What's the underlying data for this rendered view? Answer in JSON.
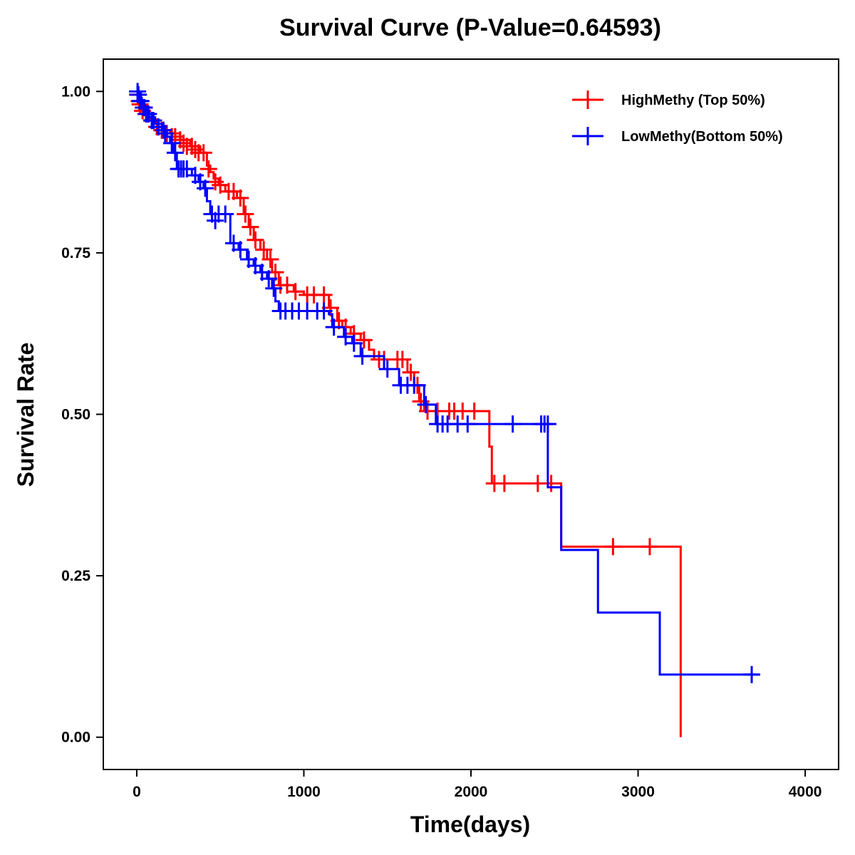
{
  "chart_data": {
    "type": "line",
    "title": "Survival Curve (P-Value=0.64593)",
    "xlabel": "Time(days)",
    "ylabel": "Survival Rate",
    "xlim": [
      -200,
      4200
    ],
    "ylim": [
      -0.05,
      1.05
    ],
    "xticks": [
      0,
      1000,
      2000,
      3000,
      4000
    ],
    "xtick_labels": [
      "0",
      "1000",
      "2000",
      "3000",
      "4000"
    ],
    "yticks": [
      0.0,
      0.25,
      0.5,
      0.75,
      1.0
    ],
    "ytick_labels": [
      "0.00",
      "0.25",
      "0.50",
      "0.75",
      "1.00"
    ],
    "grid": false,
    "legend_position": "top-right",
    "series": [
      {
        "name": "HighMethy (Top 50%)",
        "color": "#ff0000",
        "steps": [
          [
            0,
            1.0
          ],
          [
            10,
            0.985
          ],
          [
            25,
            0.975
          ],
          [
            45,
            0.965
          ],
          [
            70,
            0.958
          ],
          [
            100,
            0.95
          ],
          [
            130,
            0.945
          ],
          [
            160,
            0.94
          ],
          [
            200,
            0.935
          ],
          [
            260,
            0.925
          ],
          [
            320,
            0.915
          ],
          [
            380,
            0.905
          ],
          [
            420,
            0.885
          ],
          [
            440,
            0.875
          ],
          [
            460,
            0.865
          ],
          [
            490,
            0.855
          ],
          [
            530,
            0.845
          ],
          [
            600,
            0.835
          ],
          [
            640,
            0.81
          ],
          [
            670,
            0.79
          ],
          [
            700,
            0.77
          ],
          [
            740,
            0.755
          ],
          [
            780,
            0.74
          ],
          [
            810,
            0.72
          ],
          [
            850,
            0.7
          ],
          [
            940,
            0.69
          ],
          [
            1000,
            0.685
          ],
          [
            1150,
            0.665
          ],
          [
            1200,
            0.645
          ],
          [
            1230,
            0.635
          ],
          [
            1280,
            0.625
          ],
          [
            1340,
            0.615
          ],
          [
            1390,
            0.6
          ],
          [
            1420,
            0.585
          ],
          [
            1620,
            0.565
          ],
          [
            1660,
            0.545
          ],
          [
            1690,
            0.52
          ],
          [
            1720,
            0.505
          ],
          [
            2110,
            0.45
          ],
          [
            2125,
            0.393
          ],
          [
            2540,
            0.295
          ],
          [
            3255,
            0.0
          ]
        ],
        "end": 3255,
        "censors": [
          [
            5,
            0.995
          ],
          [
            15,
            0.985
          ],
          [
            20,
            0.98
          ],
          [
            35,
            0.97
          ],
          [
            55,
            0.965
          ],
          [
            90,
            0.955
          ],
          [
            120,
            0.945
          ],
          [
            150,
            0.94
          ],
          [
            180,
            0.935
          ],
          [
            210,
            0.93
          ],
          [
            230,
            0.93
          ],
          [
            260,
            0.925
          ],
          [
            280,
            0.92
          ],
          [
            300,
            0.915
          ],
          [
            330,
            0.915
          ],
          [
            350,
            0.91
          ],
          [
            370,
            0.905
          ],
          [
            400,
            0.905
          ],
          [
            430,
            0.88
          ],
          [
            470,
            0.86
          ],
          [
            500,
            0.855
          ],
          [
            550,
            0.845
          ],
          [
            580,
            0.845
          ],
          [
            620,
            0.835
          ],
          [
            650,
            0.81
          ],
          [
            680,
            0.79
          ],
          [
            710,
            0.77
          ],
          [
            760,
            0.755
          ],
          [
            800,
            0.74
          ],
          [
            830,
            0.72
          ],
          [
            860,
            0.7
          ],
          [
            900,
            0.7
          ],
          [
            950,
            0.69
          ],
          [
            1020,
            0.685
          ],
          [
            1060,
            0.685
          ],
          [
            1120,
            0.685
          ],
          [
            1160,
            0.665
          ],
          [
            1210,
            0.645
          ],
          [
            1250,
            0.635
          ],
          [
            1300,
            0.625
          ],
          [
            1360,
            0.615
          ],
          [
            1450,
            0.585
          ],
          [
            1480,
            0.585
          ],
          [
            1560,
            0.585
          ],
          [
            1590,
            0.585
          ],
          [
            1640,
            0.565
          ],
          [
            1680,
            0.545
          ],
          [
            1700,
            0.52
          ],
          [
            1740,
            0.505
          ],
          [
            1800,
            0.505
          ],
          [
            1870,
            0.505
          ],
          [
            1900,
            0.505
          ],
          [
            1950,
            0.505
          ],
          [
            2020,
            0.505
          ],
          [
            2140,
            0.393
          ],
          [
            2200,
            0.393
          ],
          [
            2400,
            0.393
          ],
          [
            2480,
            0.393
          ],
          [
            2850,
            0.295
          ],
          [
            3070,
            0.295
          ]
        ]
      },
      {
        "name": "LowMethy(Bottom 50%)",
        "color": "#0000ff",
        "steps": [
          [
            0,
            1.0
          ],
          [
            15,
            0.99
          ],
          [
            30,
            0.98
          ],
          [
            50,
            0.97
          ],
          [
            75,
            0.96
          ],
          [
            110,
            0.95
          ],
          [
            150,
            0.94
          ],
          [
            180,
            0.93
          ],
          [
            200,
            0.92
          ],
          [
            220,
            0.905
          ],
          [
            240,
            0.88
          ],
          [
            330,
            0.87
          ],
          [
            370,
            0.86
          ],
          [
            400,
            0.85
          ],
          [
            420,
            0.83
          ],
          [
            440,
            0.81
          ],
          [
            560,
            0.765
          ],
          [
            610,
            0.755
          ],
          [
            660,
            0.74
          ],
          [
            700,
            0.73
          ],
          [
            740,
            0.72
          ],
          [
            780,
            0.71
          ],
          [
            810,
            0.695
          ],
          [
            830,
            0.675
          ],
          [
            850,
            0.66
          ],
          [
            1150,
            0.655
          ],
          [
            1170,
            0.635
          ],
          [
            1240,
            0.62
          ],
          [
            1290,
            0.61
          ],
          [
            1340,
            0.59
          ],
          [
            1480,
            0.57
          ],
          [
            1570,
            0.545
          ],
          [
            1720,
            0.515
          ],
          [
            1790,
            0.485
          ],
          [
            2460,
            0.387
          ],
          [
            2540,
            0.29
          ],
          [
            2760,
            0.193
          ],
          [
            3130,
            0.097
          ]
        ],
        "end": 3720,
        "censors": [
          [
            5,
            1.0
          ],
          [
            10,
            0.995
          ],
          [
            20,
            0.985
          ],
          [
            25,
            0.985
          ],
          [
            40,
            0.975
          ],
          [
            45,
            0.975
          ],
          [
            60,
            0.965
          ],
          [
            70,
            0.965
          ],
          [
            90,
            0.955
          ],
          [
            100,
            0.955
          ],
          [
            130,
            0.945
          ],
          [
            160,
            0.94
          ],
          [
            170,
            0.935
          ],
          [
            210,
            0.92
          ],
          [
            230,
            0.905
          ],
          [
            250,
            0.88
          ],
          [
            265,
            0.88
          ],
          [
            280,
            0.88
          ],
          [
            300,
            0.88
          ],
          [
            350,
            0.87
          ],
          [
            380,
            0.86
          ],
          [
            410,
            0.85
          ],
          [
            450,
            0.81
          ],
          [
            470,
            0.8
          ],
          [
            490,
            0.81
          ],
          [
            530,
            0.81
          ],
          [
            580,
            0.765
          ],
          [
            620,
            0.755
          ],
          [
            670,
            0.74
          ],
          [
            710,
            0.73
          ],
          [
            750,
            0.72
          ],
          [
            790,
            0.71
          ],
          [
            820,
            0.695
          ],
          [
            860,
            0.66
          ],
          [
            890,
            0.66
          ],
          [
            930,
            0.66
          ],
          [
            970,
            0.66
          ],
          [
            1020,
            0.66
          ],
          [
            1080,
            0.66
          ],
          [
            1120,
            0.66
          ],
          [
            1180,
            0.635
          ],
          [
            1250,
            0.62
          ],
          [
            1300,
            0.61
          ],
          [
            1350,
            0.59
          ],
          [
            1500,
            0.57
          ],
          [
            1580,
            0.545
          ],
          [
            1620,
            0.545
          ],
          [
            1660,
            0.545
          ],
          [
            1730,
            0.515
          ],
          [
            1800,
            0.485
          ],
          [
            1830,
            0.485
          ],
          [
            1860,
            0.485
          ],
          [
            1920,
            0.485
          ],
          [
            1980,
            0.485
          ],
          [
            2250,
            0.485
          ],
          [
            2420,
            0.485
          ],
          [
            2440,
            0.485
          ],
          [
            2460,
            0.485
          ],
          [
            3680,
            0.097
          ]
        ]
      }
    ]
  }
}
